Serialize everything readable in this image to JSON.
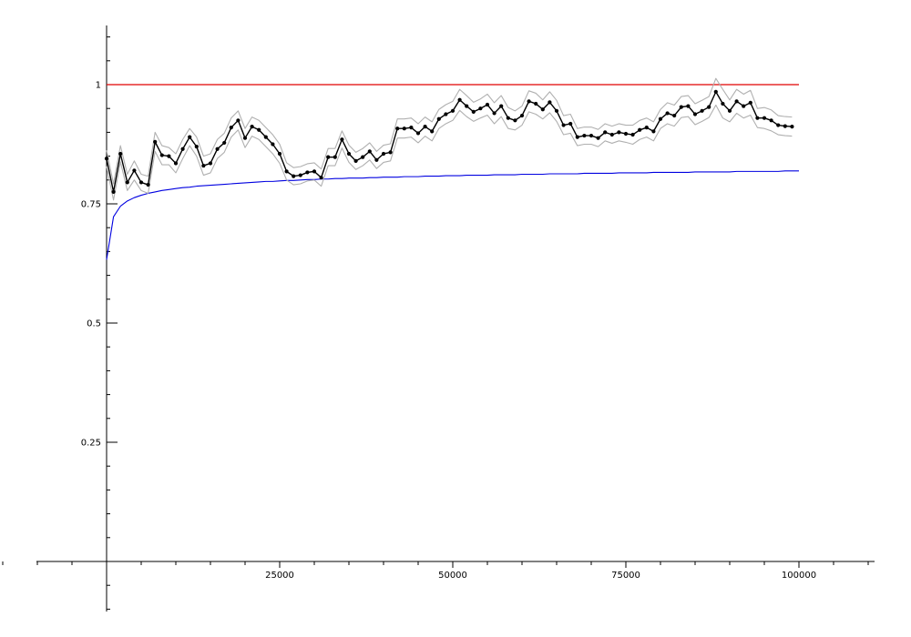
{
  "chart_data": {
    "type": "line",
    "title": "",
    "xlabel": "",
    "ylabel": "",
    "xlim": [
      -20000,
      110000
    ],
    "ylim": [
      -0.1,
      1.125
    ],
    "grid": false,
    "x_ticks": [
      {
        "value": 25000,
        "label": "25000"
      },
      {
        "value": 50000,
        "label": "50000"
      },
      {
        "value": 75000,
        "label": "75000"
      },
      {
        "value": 100000,
        "label": "100000"
      }
    ],
    "y_ticks": [
      {
        "value": 0.25,
        "label": "0.25"
      },
      {
        "value": 0.5,
        "label": "0.5"
      },
      {
        "value": 0.75,
        "label": "0.75"
      },
      {
        "value": 1,
        "label": "1"
      }
    ],
    "reference_line": {
      "y": 1,
      "color": "#e00000"
    },
    "x": [
      0,
      1000,
      2000,
      3000,
      4000,
      5000,
      6000,
      7000,
      8000,
      9000,
      10000,
      11000,
      12000,
      13000,
      14000,
      15000,
      16000,
      17000,
      18000,
      19000,
      20000,
      21000,
      22000,
      23000,
      24000,
      25000,
      26000,
      27000,
      28000,
      29000,
      30000,
      31000,
      32000,
      33000,
      34000,
      35000,
      36000,
      37000,
      38000,
      39000,
      40000,
      41000,
      42000,
      43000,
      44000,
      45000,
      46000,
      47000,
      48000,
      49000,
      50000,
      51000,
      52000,
      53000,
      54000,
      55000,
      56000,
      57000,
      58000,
      59000,
      60000,
      61000,
      62000,
      63000,
      64000,
      65000,
      66000,
      67000,
      68000,
      69000,
      70000,
      71000,
      72000,
      73000,
      74000,
      75000,
      76000,
      77000,
      78000,
      79000,
      80000,
      81000,
      82000,
      83000,
      84000,
      85000,
      86000,
      87000,
      88000,
      89000,
      90000,
      91000,
      92000,
      93000,
      94000,
      95000,
      96000,
      97000,
      98000,
      99000
    ],
    "series": [
      {
        "role": "estimate",
        "color": "#000000",
        "markers": true,
        "values": [
          0.845,
          0.775,
          0.855,
          0.795,
          0.82,
          0.795,
          0.79,
          0.88,
          0.852,
          0.85,
          0.835,
          0.865,
          0.89,
          0.87,
          0.83,
          0.835,
          0.865,
          0.878,
          0.91,
          0.925,
          0.888,
          0.912,
          0.905,
          0.89,
          0.875,
          0.855,
          0.818,
          0.808,
          0.81,
          0.816,
          0.818,
          0.805,
          0.848,
          0.848,
          0.885,
          0.855,
          0.84,
          0.848,
          0.86,
          0.842,
          0.855,
          0.858,
          0.908,
          0.908,
          0.91,
          0.898,
          0.912,
          0.902,
          0.928,
          0.938,
          0.945,
          0.968,
          0.955,
          0.943,
          0.95,
          0.958,
          0.94,
          0.955,
          0.93,
          0.925,
          0.935,
          0.965,
          0.96,
          0.948,
          0.963,
          0.945,
          0.915,
          0.918,
          0.89,
          0.893,
          0.893,
          0.888,
          0.9,
          0.895,
          0.9,
          0.897,
          0.895,
          0.905,
          0.91,
          0.902,
          0.928,
          0.94,
          0.935,
          0.953,
          0.955,
          0.938,
          0.945,
          0.953,
          0.985,
          0.96,
          0.945,
          0.965,
          0.955,
          0.962,
          0.93,
          0.93,
          0.925,
          0.915,
          0.913,
          0.912
        ]
      },
      {
        "role": "upper-band",
        "color": "#b0b0b0",
        "markers": false,
        "values": [
          0.862,
          0.792,
          0.872,
          0.812,
          0.84,
          0.812,
          0.808,
          0.9,
          0.872,
          0.868,
          0.855,
          0.885,
          0.908,
          0.89,
          0.85,
          0.855,
          0.885,
          0.898,
          0.93,
          0.945,
          0.908,
          0.932,
          0.925,
          0.91,
          0.895,
          0.875,
          0.836,
          0.826,
          0.828,
          0.834,
          0.836,
          0.823,
          0.866,
          0.866,
          0.903,
          0.873,
          0.858,
          0.866,
          0.878,
          0.86,
          0.873,
          0.876,
          0.928,
          0.928,
          0.93,
          0.918,
          0.932,
          0.922,
          0.948,
          0.958,
          0.965,
          0.99,
          0.977,
          0.963,
          0.97,
          0.98,
          0.962,
          0.977,
          0.952,
          0.945,
          0.955,
          0.987,
          0.982,
          0.968,
          0.985,
          0.967,
          0.935,
          0.938,
          0.908,
          0.911,
          0.911,
          0.906,
          0.918,
          0.913,
          0.918,
          0.915,
          0.915,
          0.925,
          0.93,
          0.922,
          0.948,
          0.962,
          0.957,
          0.975,
          0.977,
          0.96,
          0.967,
          0.975,
          1.013,
          0.99,
          0.968,
          0.99,
          0.98,
          0.988,
          0.95,
          0.952,
          0.947,
          0.935,
          0.933,
          0.932
        ]
      },
      {
        "role": "lower-band",
        "color": "#b0b0b0",
        "markers": false,
        "values": [
          0.828,
          0.758,
          0.838,
          0.778,
          0.8,
          0.778,
          0.772,
          0.86,
          0.832,
          0.832,
          0.815,
          0.845,
          0.872,
          0.85,
          0.81,
          0.815,
          0.845,
          0.858,
          0.89,
          0.905,
          0.868,
          0.892,
          0.885,
          0.87,
          0.855,
          0.835,
          0.8,
          0.79,
          0.792,
          0.798,
          0.8,
          0.787,
          0.83,
          0.83,
          0.867,
          0.837,
          0.822,
          0.83,
          0.842,
          0.824,
          0.837,
          0.84,
          0.888,
          0.888,
          0.89,
          0.878,
          0.892,
          0.882,
          0.908,
          0.918,
          0.925,
          0.946,
          0.933,
          0.923,
          0.93,
          0.936,
          0.918,
          0.933,
          0.908,
          0.905,
          0.915,
          0.943,
          0.938,
          0.928,
          0.941,
          0.923,
          0.895,
          0.898,
          0.872,
          0.875,
          0.875,
          0.87,
          0.882,
          0.877,
          0.882,
          0.879,
          0.875,
          0.885,
          0.89,
          0.882,
          0.908,
          0.918,
          0.913,
          0.931,
          0.933,
          0.916,
          0.923,
          0.931,
          0.957,
          0.93,
          0.922,
          0.94,
          0.93,
          0.936,
          0.91,
          0.908,
          0.903,
          0.895,
          0.893,
          0.892
        ]
      },
      {
        "role": "asymptotic-curve",
        "color": "#0000e0",
        "markers": false,
        "values": [
          0.633,
          0.723,
          0.745,
          0.756,
          0.763,
          0.768,
          0.772,
          0.775,
          0.778,
          0.78,
          0.782,
          0.784,
          0.785,
          0.787,
          0.788,
          0.789,
          0.79,
          0.791,
          0.792,
          0.793,
          0.794,
          0.795,
          0.796,
          0.797,
          0.797,
          0.798,
          0.799,
          0.799,
          0.8,
          0.801,
          0.801,
          0.802,
          0.802,
          0.803,
          0.803,
          0.804,
          0.804,
          0.804,
          0.805,
          0.805,
          0.806,
          0.806,
          0.806,
          0.807,
          0.807,
          0.807,
          0.808,
          0.808,
          0.808,
          0.809,
          0.809,
          0.809,
          0.81,
          0.81,
          0.81,
          0.81,
          0.811,
          0.811,
          0.811,
          0.811,
          0.812,
          0.812,
          0.812,
          0.812,
          0.813,
          0.813,
          0.813,
          0.813,
          0.813,
          0.814,
          0.814,
          0.814,
          0.814,
          0.814,
          0.815,
          0.815,
          0.815,
          0.815,
          0.815,
          0.816,
          0.816,
          0.816,
          0.816,
          0.816,
          0.816,
          0.817,
          0.817,
          0.817,
          0.817,
          0.817,
          0.817,
          0.818,
          0.818,
          0.818,
          0.818,
          0.818,
          0.818,
          0.818,
          0.819,
          0.819
        ]
      }
    ]
  }
}
